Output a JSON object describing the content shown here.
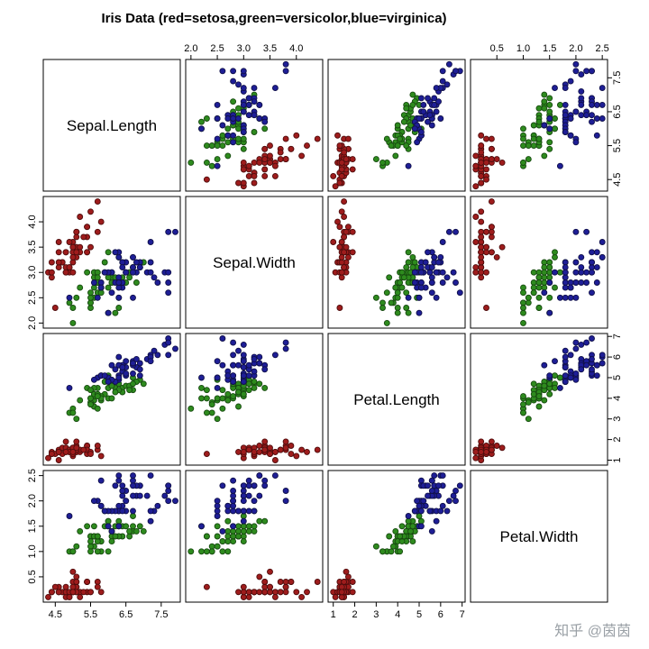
{
  "watermark": "知乎 @茵茵",
  "chart_data": {
    "type": "scatter",
    "subtype": "scatterplot-matrix",
    "title": "Iris Data (red=setosa,green=versicolor,blue=virginica)",
    "grid": "off",
    "legend_position": "in-title",
    "point_radius": 3,
    "variables": [
      {
        "name": "Sepal.Length",
        "range": [
          4.16,
          8.04
        ],
        "tick_values": [
          4.5,
          5.5,
          6.5,
          7.5
        ],
        "tick_labels": [
          "4.5",
          "5.5",
          "6.5",
          "7.5"
        ]
      },
      {
        "name": "Sepal.Width",
        "range": [
          1.9,
          4.5
        ],
        "tick_values": [
          2.0,
          2.5,
          3.0,
          3.5,
          4.0
        ],
        "tick_labels": [
          "2.0",
          "2.5",
          "3.0",
          "3.5",
          "4.0"
        ]
      },
      {
        "name": "Petal.Length",
        "range": [
          0.76,
          7.14
        ],
        "tick_values": [
          1,
          2,
          3,
          4,
          5,
          6,
          7
        ],
        "tick_labels": [
          "1",
          "2",
          "3",
          "4",
          "5",
          "6",
          "7"
        ]
      },
      {
        "name": "Petal.Width",
        "range": [
          0.0,
          2.6
        ],
        "tick_values": [
          0.5,
          1.0,
          1.5,
          2.0,
          2.5
        ],
        "tick_labels": [
          "0.5",
          "1.0",
          "1.5",
          "2.0",
          "2.5"
        ]
      }
    ],
    "series": [
      {
        "name": "setosa",
        "color": "#9e1c1c",
        "stroke": "#4f0d0d",
        "points": [
          [
            5.1,
            3.5,
            1.4,
            0.2
          ],
          [
            4.9,
            3.0,
            1.4,
            0.2
          ],
          [
            4.7,
            3.2,
            1.3,
            0.2
          ],
          [
            4.6,
            3.1,
            1.5,
            0.2
          ],
          [
            5.0,
            3.6,
            1.4,
            0.2
          ],
          [
            5.4,
            3.9,
            1.7,
            0.4
          ],
          [
            4.6,
            3.4,
            1.4,
            0.3
          ],
          [
            5.0,
            3.4,
            1.5,
            0.2
          ],
          [
            4.4,
            2.9,
            1.4,
            0.2
          ],
          [
            4.9,
            3.1,
            1.5,
            0.1
          ],
          [
            5.4,
            3.7,
            1.5,
            0.2
          ],
          [
            4.8,
            3.4,
            1.6,
            0.2
          ],
          [
            4.8,
            3.0,
            1.4,
            0.1
          ],
          [
            4.3,
            3.0,
            1.1,
            0.1
          ],
          [
            5.8,
            4.0,
            1.2,
            0.2
          ],
          [
            5.7,
            4.4,
            1.5,
            0.4
          ],
          [
            5.4,
            3.9,
            1.3,
            0.4
          ],
          [
            5.1,
            3.5,
            1.4,
            0.3
          ],
          [
            5.7,
            3.8,
            1.7,
            0.3
          ],
          [
            5.1,
            3.8,
            1.5,
            0.3
          ],
          [
            5.4,
            3.4,
            1.7,
            0.2
          ],
          [
            5.1,
            3.7,
            1.5,
            0.4
          ],
          [
            4.6,
            3.6,
            1.0,
            0.2
          ],
          [
            5.1,
            3.3,
            1.7,
            0.5
          ],
          [
            4.8,
            3.4,
            1.9,
            0.2
          ],
          [
            5.0,
            3.0,
            1.6,
            0.2
          ],
          [
            5.0,
            3.4,
            1.6,
            0.4
          ],
          [
            5.2,
            3.5,
            1.5,
            0.2
          ],
          [
            5.2,
            3.4,
            1.4,
            0.2
          ],
          [
            4.7,
            3.2,
            1.6,
            0.2
          ],
          [
            4.8,
            3.1,
            1.6,
            0.2
          ],
          [
            5.4,
            3.4,
            1.5,
            0.4
          ],
          [
            5.2,
            4.1,
            1.5,
            0.1
          ],
          [
            5.5,
            4.2,
            1.4,
            0.2
          ],
          [
            4.9,
            3.1,
            1.5,
            0.2
          ],
          [
            5.0,
            3.2,
            1.2,
            0.2
          ],
          [
            5.5,
            3.5,
            1.3,
            0.2
          ],
          [
            4.9,
            3.6,
            1.4,
            0.1
          ],
          [
            4.4,
            3.0,
            1.3,
            0.2
          ],
          [
            5.1,
            3.4,
            1.5,
            0.2
          ],
          [
            5.0,
            3.5,
            1.3,
            0.3
          ],
          [
            4.5,
            2.3,
            1.3,
            0.3
          ],
          [
            4.4,
            3.2,
            1.3,
            0.2
          ],
          [
            5.0,
            3.5,
            1.6,
            0.6
          ],
          [
            5.1,
            3.8,
            1.9,
            0.4
          ],
          [
            4.8,
            3.0,
            1.4,
            0.3
          ],
          [
            5.1,
            3.8,
            1.6,
            0.2
          ],
          [
            4.6,
            3.2,
            1.4,
            0.2
          ],
          [
            5.3,
            3.7,
            1.5,
            0.2
          ],
          [
            5.0,
            3.3,
            1.4,
            0.2
          ]
        ]
      },
      {
        "name": "versicolor",
        "color": "#2e8b1e",
        "stroke": "#174a10",
        "points": [
          [
            7.0,
            3.2,
            4.7,
            1.4
          ],
          [
            6.4,
            3.2,
            4.5,
            1.5
          ],
          [
            6.9,
            3.1,
            4.9,
            1.5
          ],
          [
            5.5,
            2.3,
            4.0,
            1.3
          ],
          [
            6.5,
            2.8,
            4.6,
            1.5
          ],
          [
            5.7,
            2.8,
            4.5,
            1.3
          ],
          [
            6.3,
            3.3,
            4.7,
            1.6
          ],
          [
            4.9,
            2.4,
            3.3,
            1.0
          ],
          [
            6.6,
            2.9,
            4.6,
            1.3
          ],
          [
            5.2,
            2.7,
            3.9,
            1.4
          ],
          [
            5.0,
            2.0,
            3.5,
            1.0
          ],
          [
            5.9,
            3.0,
            4.2,
            1.5
          ],
          [
            6.0,
            2.2,
            4.0,
            1.0
          ],
          [
            6.1,
            2.9,
            4.7,
            1.4
          ],
          [
            5.6,
            2.9,
            3.6,
            1.3
          ],
          [
            6.7,
            3.1,
            4.4,
            1.4
          ],
          [
            5.6,
            3.0,
            4.5,
            1.5
          ],
          [
            5.8,
            2.7,
            4.1,
            1.0
          ],
          [
            6.2,
            2.2,
            4.5,
            1.5
          ],
          [
            5.6,
            2.5,
            3.9,
            1.1
          ],
          [
            5.9,
            3.2,
            4.8,
            1.8
          ],
          [
            6.1,
            2.8,
            4.0,
            1.3
          ],
          [
            6.3,
            2.5,
            4.9,
            1.5
          ],
          [
            6.1,
            2.8,
            4.7,
            1.2
          ],
          [
            6.4,
            2.9,
            4.3,
            1.3
          ],
          [
            6.6,
            3.0,
            4.4,
            1.4
          ],
          [
            6.8,
            2.8,
            4.8,
            1.4
          ],
          [
            6.7,
            3.0,
            5.0,
            1.7
          ],
          [
            6.0,
            2.9,
            4.5,
            1.5
          ],
          [
            5.7,
            2.6,
            3.5,
            1.0
          ],
          [
            5.5,
            2.4,
            3.8,
            1.1
          ],
          [
            5.5,
            2.4,
            3.7,
            1.0
          ],
          [
            5.8,
            2.7,
            3.9,
            1.2
          ],
          [
            6.0,
            2.7,
            5.1,
            1.6
          ],
          [
            5.4,
            3.0,
            4.5,
            1.5
          ],
          [
            6.0,
            3.4,
            4.5,
            1.6
          ],
          [
            6.7,
            3.1,
            4.7,
            1.5
          ],
          [
            6.3,
            2.3,
            4.4,
            1.3
          ],
          [
            5.6,
            3.0,
            4.1,
            1.3
          ],
          [
            5.5,
            2.5,
            4.0,
            1.3
          ],
          [
            5.5,
            2.6,
            4.4,
            1.2
          ],
          [
            6.1,
            3.0,
            4.6,
            1.4
          ],
          [
            5.8,
            2.6,
            4.0,
            1.2
          ],
          [
            5.0,
            2.3,
            3.3,
            1.0
          ],
          [
            5.6,
            2.7,
            4.2,
            1.3
          ],
          [
            5.7,
            3.0,
            4.2,
            1.2
          ],
          [
            5.7,
            2.9,
            4.2,
            1.3
          ],
          [
            6.2,
            2.9,
            4.3,
            1.3
          ],
          [
            5.1,
            2.5,
            3.0,
            1.1
          ],
          [
            5.7,
            2.8,
            4.1,
            1.3
          ]
        ]
      },
      {
        "name": "virginica",
        "color": "#1e1e96",
        "stroke": "#10104a",
        "points": [
          [
            6.3,
            3.3,
            6.0,
            2.5
          ],
          [
            5.8,
            2.7,
            5.1,
            1.9
          ],
          [
            7.1,
            3.0,
            5.9,
            2.1
          ],
          [
            6.3,
            2.9,
            5.6,
            1.8
          ],
          [
            6.5,
            3.0,
            5.8,
            2.2
          ],
          [
            7.6,
            3.0,
            6.6,
            2.1
          ],
          [
            4.9,
            2.5,
            4.5,
            1.7
          ],
          [
            7.3,
            2.9,
            6.3,
            1.8
          ],
          [
            6.7,
            2.5,
            5.8,
            1.8
          ],
          [
            7.2,
            3.6,
            6.1,
            2.5
          ],
          [
            6.5,
            3.2,
            5.1,
            2.0
          ],
          [
            6.4,
            2.7,
            5.3,
            1.9
          ],
          [
            6.8,
            3.0,
            5.5,
            2.1
          ],
          [
            5.7,
            2.5,
            5.0,
            2.0
          ],
          [
            5.8,
            2.8,
            5.1,
            2.4
          ],
          [
            6.4,
            3.2,
            5.3,
            2.3
          ],
          [
            6.5,
            3.0,
            5.5,
            1.8
          ],
          [
            7.7,
            3.8,
            6.7,
            2.2
          ],
          [
            7.7,
            2.6,
            6.9,
            2.3
          ],
          [
            6.0,
            2.2,
            5.0,
            1.5
          ],
          [
            6.9,
            3.2,
            5.7,
            2.3
          ],
          [
            5.6,
            2.8,
            4.9,
            2.0
          ],
          [
            7.7,
            2.8,
            6.7,
            2.0
          ],
          [
            6.3,
            2.7,
            4.9,
            1.8
          ],
          [
            6.7,
            3.3,
            5.7,
            2.1
          ],
          [
            7.2,
            3.2,
            6.0,
            1.8
          ],
          [
            6.2,
            2.8,
            4.8,
            1.8
          ],
          [
            6.1,
            3.0,
            4.9,
            1.8
          ],
          [
            6.4,
            2.8,
            5.6,
            2.1
          ],
          [
            7.2,
            3.0,
            5.8,
            1.6
          ],
          [
            7.4,
            2.8,
            6.1,
            1.9
          ],
          [
            7.9,
            3.8,
            6.4,
            2.0
          ],
          [
            6.4,
            2.8,
            5.6,
            2.2
          ],
          [
            6.3,
            2.8,
            5.1,
            1.5
          ],
          [
            6.1,
            2.6,
            5.6,
            1.4
          ],
          [
            7.7,
            3.0,
            6.1,
            2.3
          ],
          [
            6.3,
            3.4,
            5.6,
            2.4
          ],
          [
            6.4,
            3.1,
            5.5,
            1.8
          ],
          [
            6.0,
            3.0,
            4.8,
            1.8
          ],
          [
            6.9,
            3.1,
            5.4,
            2.1
          ],
          [
            6.7,
            3.1,
            5.6,
            2.4
          ],
          [
            6.9,
            3.1,
            5.1,
            2.3
          ],
          [
            5.8,
            2.7,
            5.1,
            1.9
          ],
          [
            6.8,
            3.2,
            5.9,
            2.3
          ],
          [
            6.7,
            3.3,
            5.7,
            2.5
          ],
          [
            6.7,
            3.0,
            5.2,
            2.3
          ],
          [
            6.3,
            2.5,
            5.0,
            1.9
          ],
          [
            6.5,
            3.0,
            5.2,
            2.0
          ],
          [
            6.2,
            3.4,
            5.4,
            2.3
          ],
          [
            5.9,
            3.0,
            5.1,
            1.8
          ]
        ]
      }
    ]
  }
}
